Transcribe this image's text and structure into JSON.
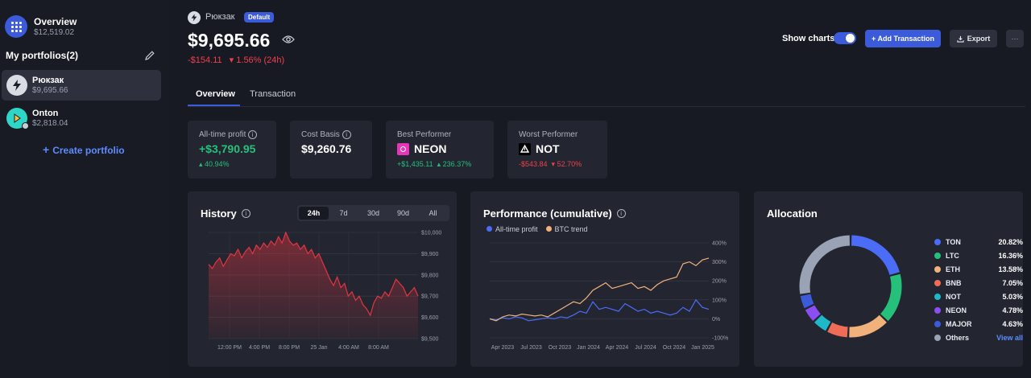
{
  "sidebar": {
    "overview": {
      "title": "Overview",
      "value": "$12,519.02"
    },
    "my_portfolios_label": "My portfolios(2)",
    "portfolios": [
      {
        "name": "Рюкзак",
        "value": "$9,695.66"
      },
      {
        "name": "Onton",
        "value": "$2,818.04"
      }
    ],
    "create_label": "Create portfolio"
  },
  "header": {
    "portfolio_name": "Рюкзак",
    "badge": "Default",
    "total_value": "$9,695.66",
    "change_abs": "-$154.11",
    "change_pct": "1.56% (24h)",
    "show_charts_label": "Show charts",
    "show_charts_on": true,
    "add_transaction_label": "+ Add Transaction",
    "export_label": "Export",
    "more_label": "···"
  },
  "tabs": [
    {
      "label": "Overview",
      "active": true
    },
    {
      "label": "Transaction",
      "active": false
    }
  ],
  "cards": {
    "all_time_profit": {
      "label": "All-time profit",
      "value": "+$3,790.95",
      "pct": "40.94%"
    },
    "cost_basis": {
      "label": "Cost Basis",
      "value": "$9,260.76"
    },
    "best": {
      "label": "Best Performer",
      "token": "NEON",
      "abs": "+$1,435.11",
      "pct": "236.37%"
    },
    "worst": {
      "label": "Worst Performer",
      "token": "NOT",
      "abs": "-$543.84",
      "pct": "52.70%"
    }
  },
  "history": {
    "title": "History",
    "ranges": [
      "24h",
      "7d",
      "30d",
      "90d",
      "All"
    ],
    "active_range": "24h"
  },
  "performance": {
    "title": "Performance (cumulative)"
  },
  "allocation": {
    "title": "Allocation",
    "view_all_label": "View all"
  },
  "chart_data": [
    {
      "type": "area",
      "title": "History",
      "y_ticks": [
        "$10,000",
        "$9,900",
        "$9,800",
        "$9,700",
        "$9,600",
        "$9,500"
      ],
      "ylim": [
        9500,
        10000
      ],
      "x_ticks": [
        "12:00 PM",
        "4:00 PM",
        "8:00 PM",
        "25 Jan",
        "4:00 AM",
        "8:00 AM"
      ],
      "grid": true,
      "color": "#e5343f",
      "values": [
        9850,
        9830,
        9860,
        9880,
        9840,
        9870,
        9900,
        9890,
        9920,
        9880,
        9910,
        9930,
        9900,
        9940,
        9920,
        9950,
        9930,
        9960,
        9940,
        9980,
        9950,
        10000,
        9960,
        9940,
        9950,
        9920,
        9940,
        9900,
        9920,
        9880,
        9900,
        9860,
        9820,
        9780,
        9750,
        9790,
        9740,
        9760,
        9700,
        9720,
        9680,
        9700,
        9660,
        9640,
        9610,
        9670,
        9700,
        9690,
        9720,
        9700,
        9740,
        9780,
        9760,
        9740,
        9700,
        9720,
        9740,
        9700
      ]
    },
    {
      "type": "line",
      "title": "Performance (cumulative)",
      "x_ticks": [
        "Apr 2023",
        "Jul 2023",
        "Oct 2023",
        "Jan 2024",
        "Apr 2024",
        "Jul 2024",
        "Oct 2024",
        "Jan 2025"
      ],
      "y_ticks": [
        "400%",
        "300%",
        "200%",
        "100%",
        "0%",
        "-100%"
      ],
      "ylim": [
        -100,
        400
      ],
      "grid": true,
      "series": [
        {
          "name": "All-time profit",
          "color": "#4a6cf7",
          "values": [
            0,
            -5,
            5,
            0,
            10,
            5,
            -10,
            -5,
            0,
            5,
            0,
            10,
            5,
            20,
            40,
            30,
            90,
            50,
            60,
            50,
            40,
            80,
            60,
            40,
            50,
            30,
            40,
            30,
            20,
            30,
            60,
            40,
            100,
            60,
            50
          ]
        },
        {
          "name": "BTC trend",
          "color": "#f0b27a",
          "values": [
            0,
            -10,
            10,
            20,
            15,
            25,
            20,
            15,
            20,
            10,
            30,
            50,
            70,
            90,
            80,
            110,
            150,
            170,
            190,
            160,
            170,
            180,
            190,
            160,
            170,
            150,
            180,
            200,
            210,
            220,
            290,
            300,
            280,
            310,
            320
          ]
        }
      ]
    },
    {
      "type": "pie",
      "title": "Allocation",
      "categories": [
        "TON",
        "LTC",
        "ETH",
        "BNB",
        "NOT",
        "NEON",
        "MAJOR",
        "Others"
      ],
      "labels": [
        "20.82%",
        "16.36%",
        "13.58%",
        "7.05%",
        "5.03%",
        "4.78%",
        "4.63%",
        ""
      ],
      "values": [
        20.82,
        16.36,
        13.58,
        7.05,
        5.03,
        4.78,
        4.63,
        27.75
      ],
      "colors": [
        "#4a6cf7",
        "#25c07a",
        "#f0b27a",
        "#ef6c57",
        "#1fb8c9",
        "#8a4ef2",
        "#3b5bdb",
        "#9aa3b5"
      ]
    }
  ]
}
